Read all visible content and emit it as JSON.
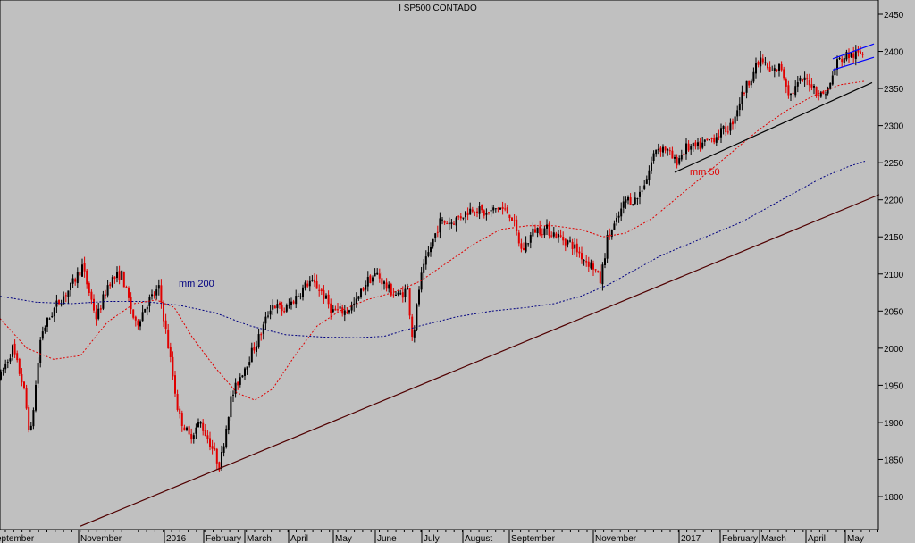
{
  "chart_data": {
    "type": "candlestick",
    "title": "I SP500 CONTADO",
    "ylim": [
      1760,
      2470
    ],
    "y_ticks": [
      1800,
      1850,
      1900,
      1950,
      2000,
      2050,
      2100,
      2150,
      2200,
      2250,
      2300,
      2350,
      2400,
      2450
    ],
    "x_labels": [
      "eptember",
      "November",
      "2016",
      "February",
      "March",
      "April",
      "May",
      "June",
      "July",
      "August",
      "September",
      "November",
      "2017",
      "February",
      "March",
      "April",
      "May"
    ],
    "colors": {
      "background": "#c0c0c0",
      "up": "#000000",
      "down": "#e00000",
      "ma50": "#e00000",
      "ma200": "#000080",
      "trend": "#500000",
      "channel": "#0000ff"
    },
    "annotations": [
      {
        "text": "mm 200",
        "color": "#000080"
      },
      {
        "text": "mm 50",
        "color": "#e00000"
      }
    ],
    "price_path": [
      [
        0,
        1960
      ],
      [
        14,
        2000
      ],
      [
        26,
        1950
      ],
      [
        34,
        1880
      ],
      [
        46,
        2020
      ],
      [
        64,
        2060
      ],
      [
        78,
        2080
      ],
      [
        92,
        2110
      ],
      [
        108,
        2040
      ],
      [
        122,
        2090
      ],
      [
        136,
        2100
      ],
      [
        152,
        2030
      ],
      [
        164,
        2060
      ],
      [
        178,
        2080
      ],
      [
        190,
        1990
      ],
      [
        200,
        1910
      ],
      [
        212,
        1880
      ],
      [
        224,
        1900
      ],
      [
        236,
        1870
      ],
      [
        246,
        1840
      ],
      [
        258,
        1930
      ],
      [
        268,
        1960
      ],
      [
        280,
        1990
      ],
      [
        292,
        2020
      ],
      [
        304,
        2060
      ],
      [
        318,
        2050
      ],
      [
        332,
        2070
      ],
      [
        346,
        2090
      ],
      [
        358,
        2080
      ],
      [
        372,
        2050
      ],
      [
        386,
        2050
      ],
      [
        398,
        2060
      ],
      [
        410,
        2090
      ],
      [
        422,
        2100
      ],
      [
        434,
        2080
      ],
      [
        446,
        2070
      ],
      [
        456,
        2080
      ],
      [
        462,
        2010
      ],
      [
        470,
        2090
      ],
      [
        480,
        2130
      ],
      [
        492,
        2170
      ],
      [
        506,
        2170
      ],
      [
        518,
        2180
      ],
      [
        530,
        2190
      ],
      [
        544,
        2180
      ],
      [
        558,
        2190
      ],
      [
        572,
        2180
      ],
      [
        584,
        2130
      ],
      [
        598,
        2160
      ],
      [
        612,
        2160
      ],
      [
        626,
        2150
      ],
      [
        640,
        2140
      ],
      [
        654,
        2120
      ],
      [
        664,
        2110
      ],
      [
        672,
        2090
      ],
      [
        680,
        2150
      ],
      [
        690,
        2170
      ],
      [
        700,
        2200
      ],
      [
        712,
        2200
      ],
      [
        724,
        2230
      ],
      [
        734,
        2270
      ],
      [
        744,
        2270
      ],
      [
        756,
        2250
      ],
      [
        768,
        2270
      ],
      [
        780,
        2270
      ],
      [
        794,
        2280
      ],
      [
        806,
        2290
      ],
      [
        818,
        2300
      ],
      [
        830,
        2340
      ],
      [
        842,
        2370
      ],
      [
        852,
        2390
      ],
      [
        862,
        2370
      ],
      [
        874,
        2380
      ],
      [
        884,
        2340
      ],
      [
        896,
        2360
      ],
      [
        906,
        2360
      ],
      [
        918,
        2340
      ],
      [
        928,
        2350
      ],
      [
        936,
        2385
      ],
      [
        948,
        2395
      ],
      [
        958,
        2395
      ],
      [
        968,
        2400
      ]
    ],
    "ma50_path": [
      [
        0,
        2040
      ],
      [
        30,
        2000
      ],
      [
        60,
        1985
      ],
      [
        90,
        1990
      ],
      [
        120,
        2035
      ],
      [
        150,
        2060
      ],
      [
        175,
        2065
      ],
      [
        195,
        2055
      ],
      [
        215,
        2015
      ],
      [
        240,
        1975
      ],
      [
        265,
        1940
      ],
      [
        285,
        1930
      ],
      [
        305,
        1945
      ],
      [
        330,
        1990
      ],
      [
        355,
        2030
      ],
      [
        380,
        2050
      ],
      [
        410,
        2065
      ],
      [
        440,
        2075
      ],
      [
        470,
        2090
      ],
      [
        500,
        2115
      ],
      [
        530,
        2140
      ],
      [
        560,
        2160
      ],
      [
        590,
        2165
      ],
      [
        620,
        2165
      ],
      [
        650,
        2160
      ],
      [
        675,
        2150
      ],
      [
        700,
        2155
      ],
      [
        730,
        2175
      ],
      [
        760,
        2205
      ],
      [
        790,
        2235
      ],
      [
        820,
        2265
      ],
      [
        850,
        2295
      ],
      [
        880,
        2320
      ],
      [
        910,
        2340
      ],
      [
        940,
        2355
      ],
      [
        968,
        2360
      ]
    ],
    "ma200_path": [
      [
        0,
        2070
      ],
      [
        40,
        2062
      ],
      [
        80,
        2060
      ],
      [
        120,
        2063
      ],
      [
        160,
        2063
      ],
      [
        200,
        2058
      ],
      [
        240,
        2048
      ],
      [
        280,
        2030
      ],
      [
        320,
        2018
      ],
      [
        360,
        2015
      ],
      [
        400,
        2014
      ],
      [
        430,
        2016
      ],
      [
        470,
        2030
      ],
      [
        510,
        2042
      ],
      [
        550,
        2050
      ],
      [
        590,
        2055
      ],
      [
        620,
        2060
      ],
      [
        650,
        2070
      ],
      [
        680,
        2085
      ],
      [
        710,
        2105
      ],
      [
        740,
        2125
      ],
      [
        770,
        2140
      ],
      [
        800,
        2155
      ],
      [
        830,
        2170
      ],
      [
        860,
        2190
      ],
      [
        890,
        2210
      ],
      [
        920,
        2230
      ],
      [
        950,
        2245
      ],
      [
        968,
        2252
      ]
    ],
    "trendlines": [
      {
        "name": "long-term-support",
        "from": [
          90,
          1760
        ],
        "to": [
          984,
          2207
        ]
      },
      {
        "name": "short-term-support",
        "from": [
          755,
          2237
        ],
        "to": [
          976,
          2358
        ]
      },
      {
        "name": "channel-top",
        "from": [
          932,
          2390
        ],
        "to": [
          978,
          2410
        ]
      },
      {
        "name": "channel-bottom",
        "from": [
          932,
          2375
        ],
        "to": [
          978,
          2392
        ]
      }
    ]
  }
}
